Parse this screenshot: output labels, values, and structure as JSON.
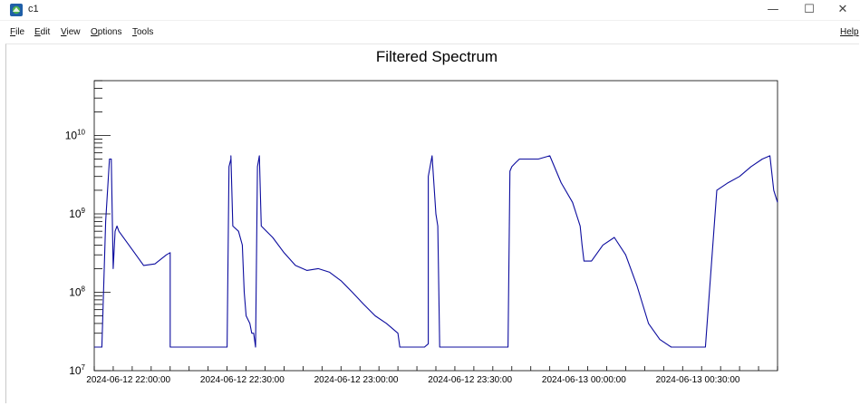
{
  "window": {
    "title": "c1",
    "controls": {
      "minimize": "—",
      "maximize": "☐",
      "close": "✕"
    }
  },
  "menubar": {
    "items": [
      {
        "label": "File",
        "mnemonic": "F",
        "rest": "ile"
      },
      {
        "label": "Edit",
        "mnemonic": "E",
        "rest": "dit"
      },
      {
        "label": "View",
        "mnemonic": "V",
        "rest": "iew"
      },
      {
        "label": "Options",
        "mnemonic": "O",
        "rest": "ptions"
      },
      {
        "label": "Tools",
        "mnemonic": "T",
        "rest": "ools"
      }
    ],
    "help": "Help"
  },
  "colors": {
    "line": "#0c0c9e",
    "axis": "#000000",
    "background": "#ffffff"
  },
  "chart_data": {
    "type": "line",
    "title": "Filtered Spectrum",
    "xlabel": "",
    "ylabel": "",
    "x_scale": "time",
    "y_scale": "log",
    "ylim": [
      10000000,
      50000000000
    ],
    "xlim": [
      "2024-06-12 21:51:00",
      "2024-06-13 00:51:00"
    ],
    "x_ticks": [
      "2024-06-12 22:00:00",
      "2024-06-12 22:30:00",
      "2024-06-12 23:00:00",
      "2024-06-12 23:30:00",
      "2024-06-13 00:00:00",
      "2024-06-13 00:30:00"
    ],
    "y_ticks": [
      {
        "value": 10000000,
        "base": "10",
        "exp": "7"
      },
      {
        "value": 100000000,
        "base": "10",
        "exp": "8"
      },
      {
        "value": 1000000000,
        "base": "10",
        "exp": "9"
      },
      {
        "value": 10000000000,
        "base": "10",
        "exp": "10"
      }
    ],
    "grid": false,
    "series": [
      {
        "x": [
          "2024-06-12 21:51:00",
          "2024-06-12 21:53:00",
          "2024-06-12 21:54:00",
          "2024-06-12 21:55:00",
          "2024-06-12 21:55:30",
          "2024-06-12 21:56:00",
          "2024-06-12 21:56:30",
          "2024-06-12 21:57:00",
          "2024-06-12 21:57:30",
          "2024-06-12 22:01:00",
          "2024-06-12 22:04:00",
          "2024-06-12 22:07:00",
          "2024-06-12 22:10:00",
          "2024-06-12 22:11:00",
          "2024-06-12 22:11:00",
          "2024-06-12 22:13:00",
          "2024-06-12 22:25:00",
          "2024-06-12 22:26:00",
          "2024-06-12 22:26:30",
          "2024-06-12 22:27:00",
          "2024-06-12 22:27:00",
          "2024-06-12 22:27:30",
          "2024-06-12 22:29:00",
          "2024-06-12 22:30:00",
          "2024-06-12 22:30:30",
          "2024-06-12 22:31:00",
          "2024-06-12 22:32:00",
          "2024-06-12 22:32:30",
          "2024-06-12 22:33:00",
          "2024-06-12 22:33:30",
          "2024-06-12 22:34:00",
          "2024-06-12 22:34:30",
          "2024-06-12 22:35:00",
          "2024-06-12 22:38:00",
          "2024-06-12 22:41:00",
          "2024-06-12 22:44:00",
          "2024-06-12 22:47:00",
          "2024-06-12 22:50:00",
          "2024-06-12 22:53:00",
          "2024-06-12 22:56:00",
          "2024-06-12 22:59:00",
          "2024-06-12 23:02:00",
          "2024-06-12 23:05:00",
          "2024-06-12 23:08:00",
          "2024-06-12 23:11:00",
          "2024-06-12 23:11:30",
          "2024-06-12 23:12:00",
          "2024-06-12 23:18:00",
          "2024-06-12 23:19:00",
          "2024-06-12 23:19:00",
          "2024-06-12 23:20:00",
          "2024-06-12 23:21:00",
          "2024-06-12 23:21:30",
          "2024-06-12 23:22:00",
          "2024-06-12 23:22:30",
          "2024-06-12 23:23:00",
          "2024-06-12 23:26:00",
          "2024-06-12 23:40:00",
          "2024-06-12 23:40:30",
          "2024-06-12 23:41:00",
          "2024-06-12 23:42:00",
          "2024-06-12 23:43:00",
          "2024-06-12 23:45:00",
          "2024-06-12 23:48:00",
          "2024-06-12 23:51:00",
          "2024-06-12 23:54:00",
          "2024-06-12 23:57:00",
          "2024-06-12 23:59:00",
          "2024-06-12 23:59:30",
          "2024-06-13 00:00:00",
          "2024-06-13 00:02:00",
          "2024-06-13 00:05:00",
          "2024-06-13 00:08:00",
          "2024-06-13 00:11:00",
          "2024-06-13 00:14:00",
          "2024-06-13 00:17:00",
          "2024-06-13 00:20:00",
          "2024-06-13 00:23:00",
          "2024-06-13 00:26:00",
          "2024-06-13 00:29:00",
          "2024-06-13 00:31:00",
          "2024-06-13 00:32:00",
          "2024-06-13 00:35:00",
          "2024-06-13 00:38:00",
          "2024-06-13 00:41:00",
          "2024-06-13 00:44:00",
          "2024-06-13 00:47:00",
          "2024-06-13 00:49:00",
          "2024-06-13 00:50:00",
          "2024-06-13 00:51:00"
        ],
        "y": [
          20000000,
          20000000,
          800000000,
          5000000000,
          5000000000,
          200000000,
          600000000,
          700000000,
          600000000,
          350000000,
          220000000,
          230000000,
          300000000,
          320000000,
          20000000,
          20000000,
          20000000,
          20000000,
          4000000000,
          5000000000,
          5500000000,
          700000000,
          600000000,
          400000000,
          100000000,
          50000000,
          40000000,
          30000000,
          30000000,
          20000000,
          4000000000,
          5500000000,
          700000000,
          500000000,
          320000000,
          220000000,
          190000000,
          200000000,
          180000000,
          140000000,
          100000000,
          70000000,
          50000000,
          40000000,
          30000000,
          20000000,
          20000000,
          20000000,
          22000000,
          3000000000,
          5500000000,
          1000000000,
          700000000,
          20000000,
          20000000,
          20000000,
          20000000,
          20000000,
          3500000000,
          4000000000,
          4500000000,
          5000000000,
          5000000000,
          5000000000,
          5500000000,
          2500000000,
          1400000000,
          700000000,
          400000000,
          250000000,
          250000000,
          400000000,
          500000000,
          300000000,
          120000000,
          40000000,
          25000000,
          20000000,
          20000000,
          20000000,
          20000000,
          20000000,
          2000000000,
          2500000000,
          3000000000,
          4000000000,
          5000000000,
          5500000000,
          2000000000,
          1400000000
        ]
      }
    ]
  }
}
